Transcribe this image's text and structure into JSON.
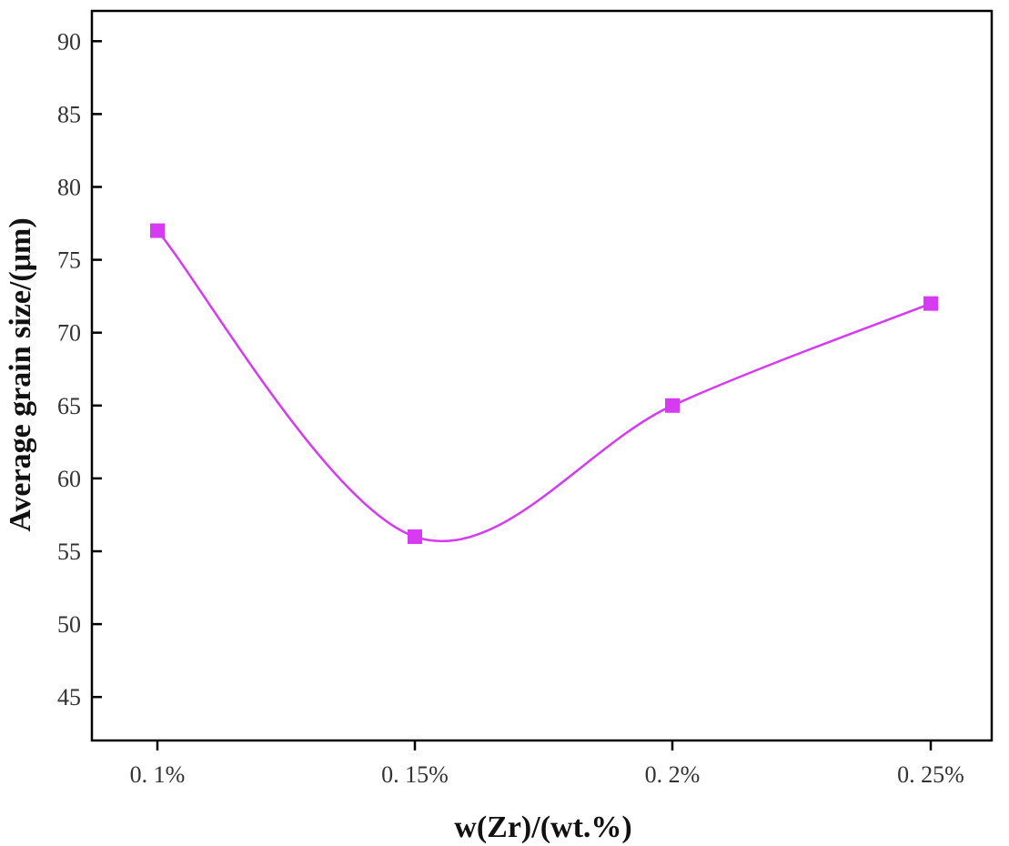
{
  "chart_data": {
    "type": "line",
    "title": "",
    "xlabel": "w(Zr)/(wt.%)",
    "ylabel": "Average grain size/(μm)",
    "categories": [
      "0. 1%",
      "0. 15%",
      "0. 2%",
      "0. 25%"
    ],
    "series": [
      {
        "values": [
          77,
          56,
          65,
          72
        ],
        "color": "#d63bf2",
        "marker": "square",
        "smooth": true
      }
    ],
    "ylim": [
      42,
      92
    ],
    "yticks": [
      45,
      50,
      55,
      60,
      65,
      70,
      75,
      80,
      85,
      90
    ],
    "grid": false,
    "legend": "none"
  }
}
